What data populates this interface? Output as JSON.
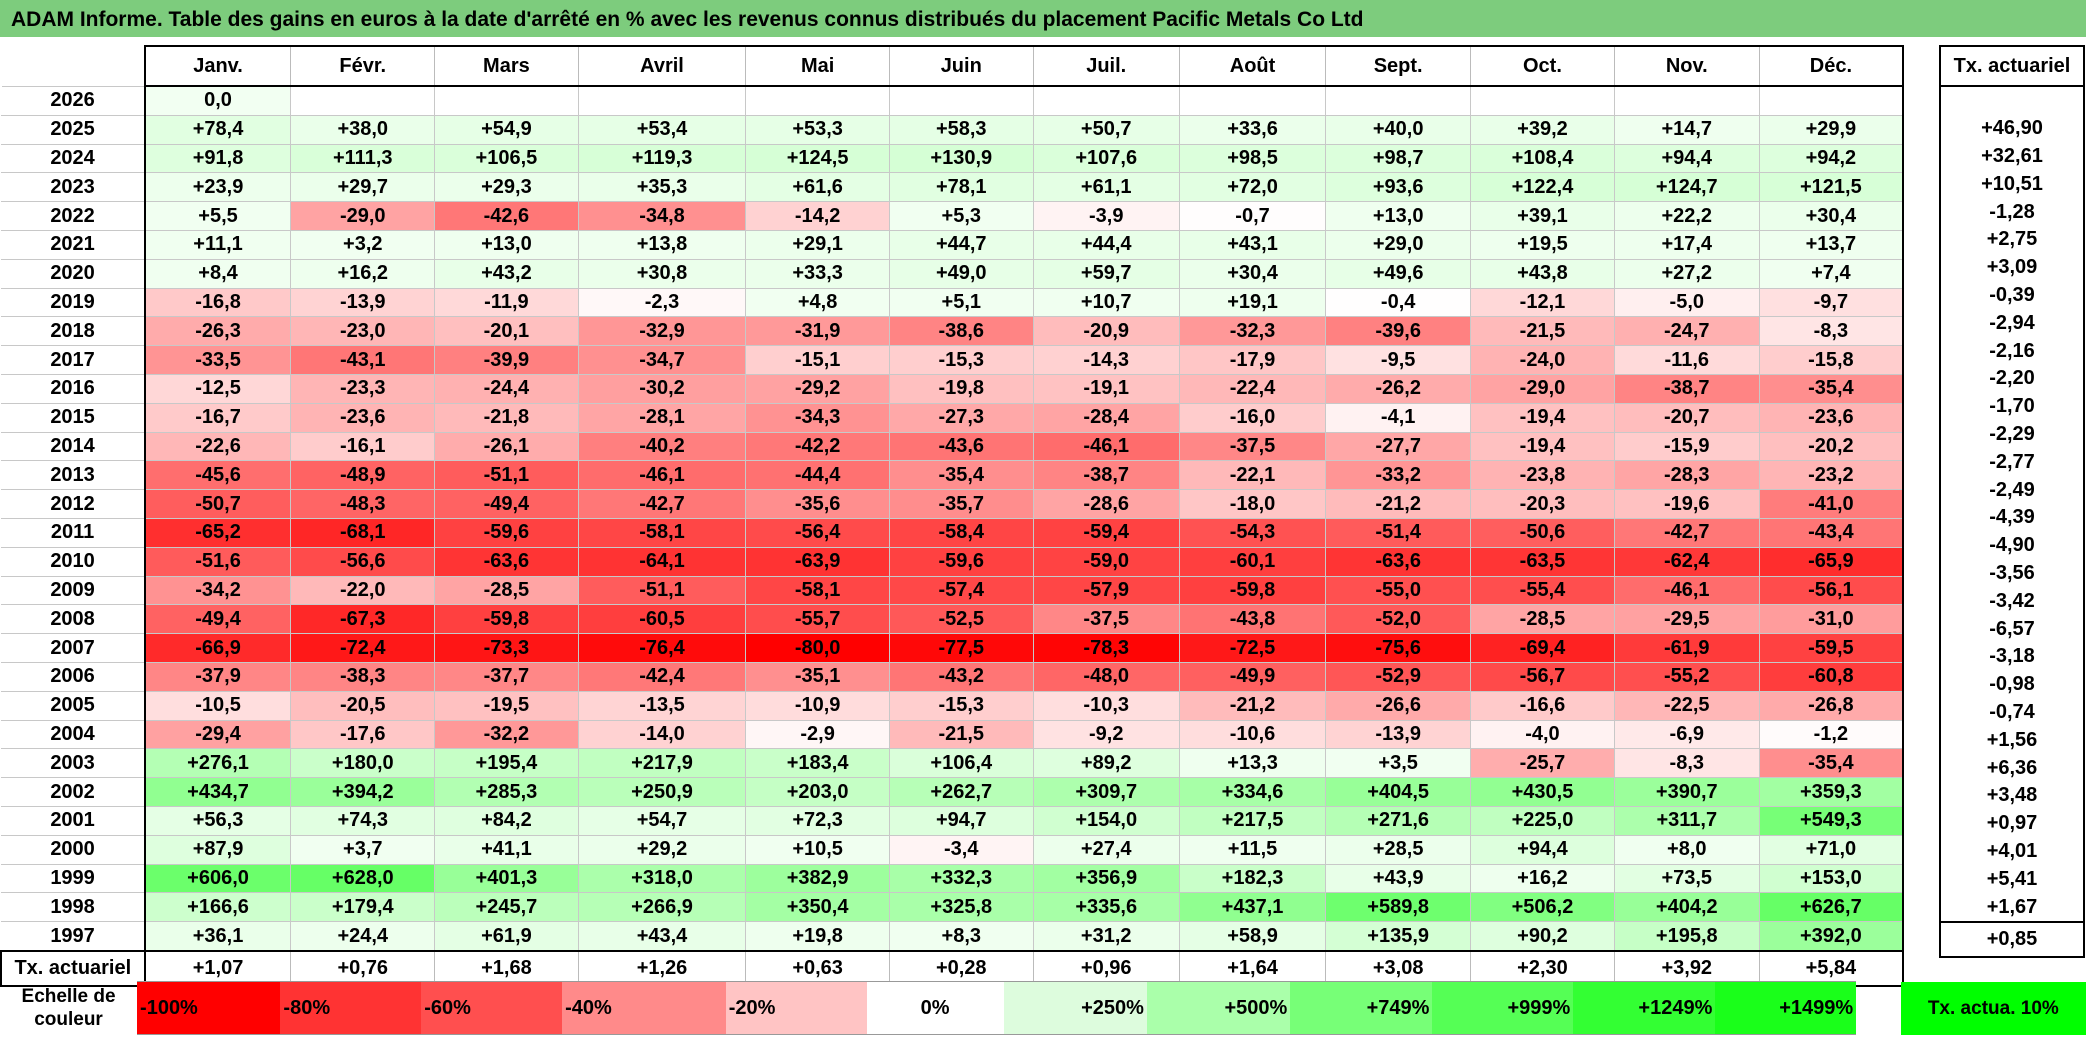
{
  "title": "ADAM Informe. Table des gains en euros à la date d'arrêté en % avec les revenus connus distribués du placement Pacific Metals Co Ltd",
  "chart_data": {
    "type": "heatmap",
    "columns": [
      "Janv.",
      "Févr.",
      "Mars",
      "Avril",
      "Mai",
      "Juin",
      "Juil.",
      "Août",
      "Sept.",
      "Oct.",
      "Nov.",
      "Déc."
    ],
    "rate_header": "Tx. actuariel",
    "rows": [
      {
        "year": "2026",
        "values": [
          "0,0",
          "",
          "",
          "",
          "",
          "",
          "",
          "",
          "",
          "",
          "",
          ""
        ],
        "rate": ""
      },
      {
        "year": "2025",
        "values": [
          "+78,4",
          "+38,0",
          "+54,9",
          "+53,4",
          "+53,3",
          "+58,3",
          "+50,7",
          "+33,6",
          "+40,0",
          "+39,2",
          "+14,7",
          "+29,9"
        ],
        "rate": "+46,90"
      },
      {
        "year": "2024",
        "values": [
          "+91,8",
          "+111,3",
          "+106,5",
          "+119,3",
          "+124,5",
          "+130,9",
          "+107,6",
          "+98,5",
          "+98,7",
          "+108,4",
          "+94,4",
          "+94,2"
        ],
        "rate": "+32,61"
      },
      {
        "year": "2023",
        "values": [
          "+23,9",
          "+29,7",
          "+29,3",
          "+35,3",
          "+61,6",
          "+78,1",
          "+61,1",
          "+72,0",
          "+93,6",
          "+122,4",
          "+124,7",
          "+121,5"
        ],
        "rate": "+10,51"
      },
      {
        "year": "2022",
        "values": [
          "+5,5",
          "-29,0",
          "-42,6",
          "-34,8",
          "-14,2",
          "+5,3",
          "-3,9",
          "-0,7",
          "+13,0",
          "+39,1",
          "+22,2",
          "+30,4"
        ],
        "rate": "-1,28"
      },
      {
        "year": "2021",
        "values": [
          "+11,1",
          "+3,2",
          "+13,0",
          "+13,8",
          "+29,1",
          "+44,7",
          "+44,4",
          "+43,1",
          "+29,0",
          "+19,5",
          "+17,4",
          "+13,7"
        ],
        "rate": "+2,75"
      },
      {
        "year": "2020",
        "values": [
          "+8,4",
          "+16,2",
          "+43,2",
          "+30,8",
          "+33,3",
          "+49,0",
          "+59,7",
          "+30,4",
          "+49,6",
          "+43,8",
          "+27,2",
          "+7,4"
        ],
        "rate": "+3,09"
      },
      {
        "year": "2019",
        "values": [
          "-16,8",
          "-13,9",
          "-11,9",
          "-2,3",
          "+4,8",
          "+5,1",
          "+10,7",
          "+19,1",
          "-0,4",
          "-12,1",
          "-5,0",
          "-9,7"
        ],
        "rate": "-0,39"
      },
      {
        "year": "2018",
        "values": [
          "-26,3",
          "-23,0",
          "-20,1",
          "-32,9",
          "-31,9",
          "-38,6",
          "-20,9",
          "-32,3",
          "-39,6",
          "-21,5",
          "-24,7",
          "-8,3"
        ],
        "rate": "-2,94"
      },
      {
        "year": "2017",
        "values": [
          "-33,5",
          "-43,1",
          "-39,9",
          "-34,7",
          "-15,1",
          "-15,3",
          "-14,3",
          "-17,9",
          "-9,5",
          "-24,0",
          "-11,6",
          "-15,8"
        ],
        "rate": "-2,16"
      },
      {
        "year": "2016",
        "values": [
          "-12,5",
          "-23,3",
          "-24,4",
          "-30,2",
          "-29,2",
          "-19,8",
          "-19,1",
          "-22,4",
          "-26,2",
          "-29,0",
          "-38,7",
          "-35,4"
        ],
        "rate": "-2,20"
      },
      {
        "year": "2015",
        "values": [
          "-16,7",
          "-23,6",
          "-21,8",
          "-28,1",
          "-34,3",
          "-27,3",
          "-28,4",
          "-16,0",
          "-4,1",
          "-19,4",
          "-20,7",
          "-23,6"
        ],
        "rate": "-1,70"
      },
      {
        "year": "2014",
        "values": [
          "-22,6",
          "-16,1",
          "-26,1",
          "-40,2",
          "-42,2",
          "-43,6",
          "-46,1",
          "-37,5",
          "-27,7",
          "-19,4",
          "-15,9",
          "-20,2"
        ],
        "rate": "-2,29"
      },
      {
        "year": "2013",
        "values": [
          "-45,6",
          "-48,9",
          "-51,1",
          "-46,1",
          "-44,4",
          "-35,4",
          "-38,7",
          "-22,1",
          "-33,2",
          "-23,8",
          "-28,3",
          "-23,2"
        ],
        "rate": "-2,77"
      },
      {
        "year": "2012",
        "values": [
          "-50,7",
          "-48,3",
          "-49,4",
          "-42,7",
          "-35,6",
          "-35,7",
          "-28,6",
          "-18,0",
          "-21,2",
          "-20,3",
          "-19,6",
          "-41,0"
        ],
        "rate": "-2,49"
      },
      {
        "year": "2011",
        "values": [
          "-65,2",
          "-68,1",
          "-59,6",
          "-58,1",
          "-56,4",
          "-58,4",
          "-59,4",
          "-54,3",
          "-51,4",
          "-50,6",
          "-42,7",
          "-43,4"
        ],
        "rate": "-4,39"
      },
      {
        "year": "2010",
        "values": [
          "-51,6",
          "-56,6",
          "-63,6",
          "-64,1",
          "-63,9",
          "-59,6",
          "-59,0",
          "-60,1",
          "-63,6",
          "-63,5",
          "-62,4",
          "-65,9"
        ],
        "rate": "-4,90"
      },
      {
        "year": "2009",
        "values": [
          "-34,2",
          "-22,0",
          "-28,5",
          "-51,1",
          "-58,1",
          "-57,4",
          "-57,9",
          "-59,8",
          "-55,0",
          "-55,4",
          "-46,1",
          "-56,1"
        ],
        "rate": "-3,56"
      },
      {
        "year": "2008",
        "values": [
          "-49,4",
          "-67,3",
          "-59,8",
          "-60,5",
          "-55,7",
          "-52,5",
          "-37,5",
          "-43,8",
          "-52,0",
          "-28,5",
          "-29,5",
          "-31,0"
        ],
        "rate": "-3,42"
      },
      {
        "year": "2007",
        "values": [
          "-66,9",
          "-72,4",
          "-73,3",
          "-76,4",
          "-80,0",
          "-77,5",
          "-78,3",
          "-72,5",
          "-75,6",
          "-69,4",
          "-61,9",
          "-59,5"
        ],
        "rate": "-6,57"
      },
      {
        "year": "2006",
        "values": [
          "-37,9",
          "-38,3",
          "-37,7",
          "-42,4",
          "-35,1",
          "-43,2",
          "-48,0",
          "-49,9",
          "-52,9",
          "-56,7",
          "-55,2",
          "-60,8"
        ],
        "rate": "-3,18"
      },
      {
        "year": "2005",
        "values": [
          "-10,5",
          "-20,5",
          "-19,5",
          "-13,5",
          "-10,9",
          "-15,3",
          "-10,3",
          "-21,2",
          "-26,6",
          "-16,6",
          "-22,5",
          "-26,8"
        ],
        "rate": "-0,98"
      },
      {
        "year": "2004",
        "values": [
          "-29,4",
          "-17,6",
          "-32,2",
          "-14,0",
          "-2,9",
          "-21,5",
          "-9,2",
          "-10,6",
          "-13,9",
          "-4,0",
          "-6,9",
          "-1,2"
        ],
        "rate": "-0,74"
      },
      {
        "year": "2003",
        "values": [
          "+276,1",
          "+180,0",
          "+195,4",
          "+217,9",
          "+183,4",
          "+106,4",
          "+89,2",
          "+13,3",
          "+3,5",
          "-25,7",
          "-8,3",
          "-35,4"
        ],
        "rate": "+1,56"
      },
      {
        "year": "2002",
        "values": [
          "+434,7",
          "+394,2",
          "+285,3",
          "+250,9",
          "+203,0",
          "+262,7",
          "+309,7",
          "+334,6",
          "+404,5",
          "+430,5",
          "+390,7",
          "+359,3"
        ],
        "rate": "+6,36"
      },
      {
        "year": "2001",
        "values": [
          "+56,3",
          "+74,3",
          "+84,2",
          "+54,7",
          "+72,3",
          "+94,7",
          "+154,0",
          "+217,5",
          "+271,6",
          "+225,0",
          "+311,7",
          "+549,3"
        ],
        "rate": "+3,48"
      },
      {
        "year": "2000",
        "values": [
          "+87,9",
          "+3,7",
          "+41,1",
          "+29,2",
          "+10,5",
          "-3,4",
          "+27,4",
          "+11,5",
          "+28,5",
          "+94,4",
          "+8,0",
          "+71,0"
        ],
        "rate": "+0,97"
      },
      {
        "year": "1999",
        "values": [
          "+606,0",
          "+628,0",
          "+401,3",
          "+318,0",
          "+382,9",
          "+332,3",
          "+356,9",
          "+182,3",
          "+43,9",
          "+16,2",
          "+73,5",
          "+153,0"
        ],
        "rate": "+4,01"
      },
      {
        "year": "1998",
        "values": [
          "+166,6",
          "+179,4",
          "+245,7",
          "+266,9",
          "+350,4",
          "+325,8",
          "+335,6",
          "+437,1",
          "+589,8",
          "+506,2",
          "+404,2",
          "+626,7"
        ],
        "rate": "+5,41"
      },
      {
        "year": "1997",
        "values": [
          "+36,1",
          "+24,4",
          "+61,9",
          "+43,4",
          "+19,8",
          "+8,3",
          "+31,2",
          "+58,9",
          "+135,9",
          "+90,2",
          "+195,8",
          "+392,0"
        ],
        "rate": "+1,67"
      }
    ],
    "summary": {
      "label": "Tx. actuariel",
      "values": [
        "+1,07",
        "+0,76",
        "+1,68",
        "+1,26",
        "+0,63",
        "+0,28",
        "+0,96",
        "+1,64",
        "+3,08",
        "+2,30",
        "+3,92",
        "+5,84"
      ],
      "rate": "+0,85"
    },
    "legend": {
      "label": "Echelle de couleur",
      "swatches": [
        {
          "text": "-100%",
          "color": "#ff0000"
        },
        {
          "text": "-80%",
          "color": "#ff3333"
        },
        {
          "text": "-60%",
          "color": "#ff4f4f"
        },
        {
          "text": "-40%",
          "color": "#ff8a8a"
        },
        {
          "text": "-20%",
          "color": "#ffc4c4"
        },
        {
          "text": "0%",
          "color": "#ffffff"
        },
        {
          "text": "+250%",
          "color": "#ddfcdd"
        },
        {
          "text": "+500%",
          "color": "#aaffaa"
        },
        {
          "text": "+749%",
          "color": "#77ff77"
        },
        {
          "text": "+999%",
          "color": "#55ff55"
        },
        {
          "text": "+1249%",
          "color": "#33ff33"
        },
        {
          "text": "+1499%",
          "color": "#1aff1a"
        }
      ],
      "rate_swatch": "Tx. actua. 10%"
    }
  }
}
